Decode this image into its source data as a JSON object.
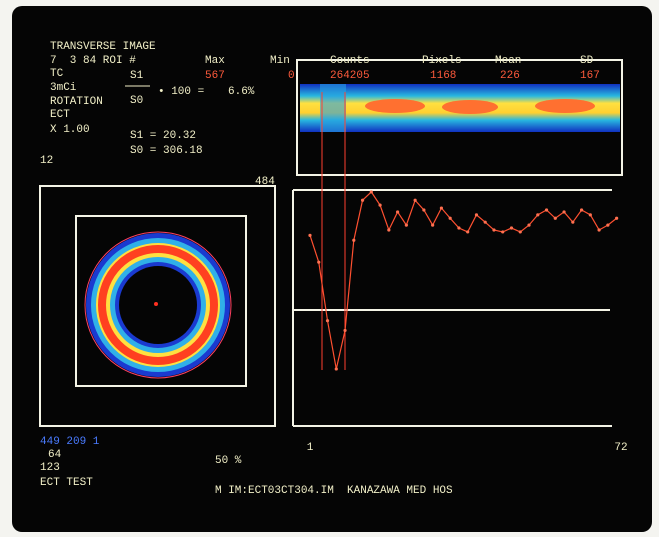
{
  "header": {
    "title": "TRANSVERSE IMAGE",
    "study": "7  3 84 ROI #",
    "lines": [
      "TC",
      "3mCi",
      "ROTATION",
      "ECT",
      "X 1.00",
      "12"
    ]
  },
  "roi_table": {
    "columns": [
      "Max",
      "Min",
      "Counts",
      "Pixels",
      "Mean",
      "SD"
    ],
    "row": [
      "567",
      "0",
      "264205",
      "1168",
      "226",
      "167"
    ]
  },
  "ratio": {
    "numerator": "S1",
    "denominator": "S0",
    "times": "• 100 =",
    "result": "6.6%",
    "s1": "S1 = 20.32",
    "s0": "S0 = 306.18"
  },
  "profile": {
    "scale_max": 484,
    "xticks": [
      1,
      72
    ],
    "x": [
      1,
      3,
      5,
      7,
      9,
      11,
      13,
      15,
      17,
      19,
      21,
      23,
      25,
      27,
      29,
      31,
      33,
      35,
      37,
      39,
      41,
      43,
      45,
      47,
      49,
      51,
      53,
      55,
      57,
      59,
      61,
      63,
      65,
      67,
      69,
      71
    ],
    "values": [
      391,
      336,
      216,
      117,
      196,
      381,
      463,
      480,
      453,
      402,
      439,
      412,
      463,
      443,
      412,
      447,
      426,
      406,
      398,
      433,
      418,
      402,
      398,
      406,
      398,
      412,
      433,
      443,
      426,
      439,
      418,
      443,
      433,
      402,
      412,
      426
    ]
  },
  "footer": {
    "cursor": "449 209 1",
    "lines": [
      "64",
      "123",
      "ECT TEST"
    ],
    "threshold": "50 %",
    "file": "M IM:ECT03CT304.IM  KANAZAWA MED HOS"
  }
}
